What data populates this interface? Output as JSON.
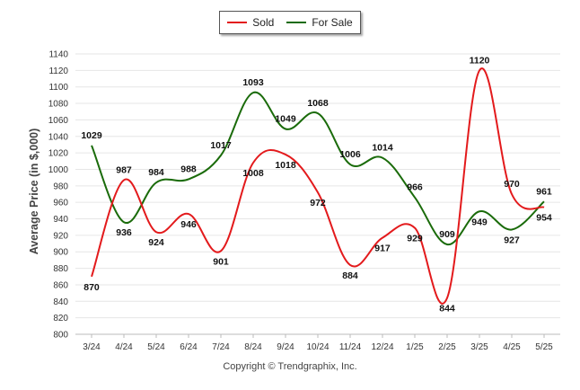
{
  "chart_data": {
    "type": "line",
    "categories": [
      "3/24",
      "4/24",
      "5/24",
      "6/24",
      "7/24",
      "8/24",
      "9/24",
      "10/24",
      "11/24",
      "12/24",
      "1/25",
      "2/25",
      "3/25",
      "4/25",
      "5/25"
    ],
    "series": [
      {
        "name": "Sold",
        "color": "#e31a1c",
        "values": [
          870,
          987,
          924,
          946,
          901,
          1008,
          1018,
          972,
          884,
          917,
          929,
          844,
          1120,
          970,
          954
        ]
      },
      {
        "name": "For Sale",
        "color": "#1a6b0a",
        "values": [
          1029,
          936,
          984,
          988,
          1017,
          1093,
          1049,
          1068,
          1006,
          1014,
          966,
          909,
          949,
          927,
          961
        ]
      }
    ],
    "ylabel": "Average Price (in $,000)",
    "xlabel": "",
    "ylim": [
      800,
      1140
    ],
    "yticks": [
      800,
      820,
      840,
      860,
      880,
      900,
      920,
      940,
      960,
      980,
      1000,
      1020,
      1040,
      1060,
      1080,
      1100,
      1120,
      1140
    ],
    "grid": true,
    "legend_position": "top-center"
  },
  "footer": {
    "copyright": "Copyright © Trendgraphix, Inc."
  }
}
